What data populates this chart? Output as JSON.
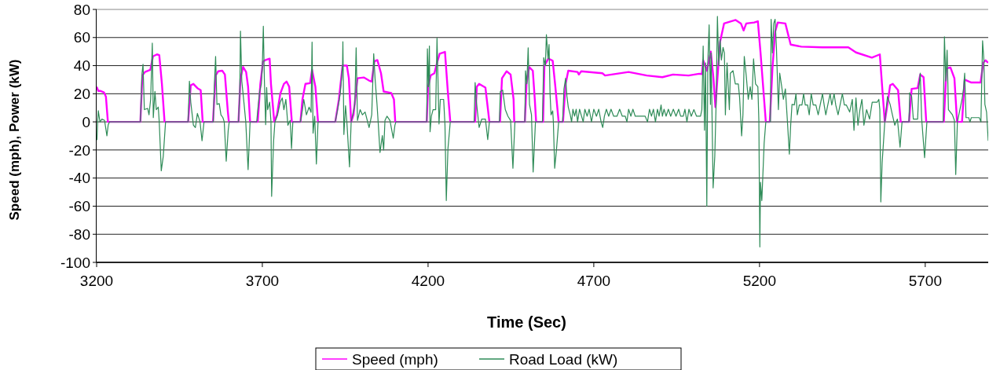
{
  "chart_data": {
    "type": "line",
    "xlabel": "Time (Sec)",
    "ylabel": "Speed (mph), Power (kW)",
    "xlim": [
      3200,
      5890
    ],
    "xticks": [
      3200,
      3700,
      4200,
      4700,
      5200,
      5700
    ],
    "ylim": [
      -100,
      80
    ],
    "yticks": [
      -100,
      -80,
      -60,
      -40,
      -20,
      0,
      20,
      40,
      60,
      80
    ],
    "grid": "y",
    "legend": "bottom",
    "marker": "none",
    "line_style": "solid",
    "series": [
      {
        "name": "Speed (mph)",
        "color": "#ff00ff",
        "x": [
          3200,
          3205,
          3212,
          3222,
          3228,
          3234,
          3332,
          3338,
          3346,
          3362,
          3370,
          3382,
          3389,
          3397,
          3405,
          3476,
          3484,
          3492,
          3504,
          3514,
          3520,
          3551,
          3559,
          3567,
          3579,
          3587,
          3596,
          3599,
          3628,
          3634,
          3642,
          3651,
          3657,
          3663,
          3686,
          3694,
          3702,
          3710,
          3722,
          3726,
          3736,
          3744,
          3754,
          3765,
          3773,
          3781,
          3789,
          3815,
          3821,
          3830,
          3844,
          3850,
          3860,
          3868,
          3920,
          3931,
          3942,
          3955,
          3961,
          3968,
          3975,
          3987,
          4006,
          4022,
          4030,
          4038,
          4047,
          4058,
          4066,
          4089,
          4097,
          4101,
          4196,
          4200,
          4208,
          4219,
          4227,
          4235,
          4251,
          4259,
          4267,
          4342,
          4347,
          4354,
          4373,
          4385,
          4417,
          4423,
          4437,
          4449,
          4458,
          4460,
          4492,
          4497,
          4505,
          4516,
          4522,
          4526,
          4547,
          4551,
          4563,
          4576,
          4584,
          4594,
          4607,
          4615,
          4623,
          4651,
          4655,
          4662,
          4726,
          4734,
          4805,
          4860,
          4907,
          4939,
          4986,
          5018,
          5026,
          5030,
          5041,
          5053,
          5061,
          5067,
          5073,
          5081,
          5093,
          5128,
          5144,
          5152,
          5160,
          5184,
          5195,
          5203,
          5215,
          5219,
          5231,
          5239,
          5247,
          5255,
          5278,
          5294,
          5326,
          5389,
          5468,
          5491,
          5539,
          5563,
          5570,
          5578,
          5586,
          5594,
          5602,
          5618,
          5626,
          5651,
          5659,
          5677,
          5685,
          5695,
          5703,
          5756,
          5764,
          5776,
          5788,
          5796,
          5811,
          5819,
          5839,
          5867,
          5875,
          5882,
          5890
        ],
        "values": [
          25,
          22,
          22,
          21,
          18,
          0,
          0,
          33,
          35.5,
          37,
          46.6,
          48,
          47.5,
          27,
          0,
          0,
          26,
          27,
          24,
          22.5,
          0,
          0,
          33,
          36,
          36.4,
          33.7,
          7,
          0,
          0,
          31,
          39,
          35.5,
          25,
          0,
          0,
          27,
          43,
          44,
          45,
          27,
          0,
          5,
          20,
          27,
          28.7,
          25,
          0,
          0,
          16,
          27,
          27.5,
          37,
          25,
          0,
          0,
          16,
          40,
          40,
          31,
          0,
          5,
          31,
          31.6,
          29.4,
          28.7,
          43,
          44,
          34.6,
          21.6,
          20.5,
          16,
          0,
          0,
          25,
          33,
          34.6,
          42,
          48.5,
          49.8,
          23.5,
          0,
          0,
          25,
          27,
          24.4,
          0,
          0,
          31,
          36,
          33.7,
          16,
          0,
          0,
          27,
          39,
          36.4,
          16,
          0,
          0,
          40,
          45,
          43.5,
          25,
          0,
          0,
          27,
          36.4,
          35.5,
          33.7,
          36,
          34.6,
          33,
          35.5,
          33,
          31.8,
          33.7,
          33,
          34.2,
          34,
          43.8,
          36.4,
          50,
          31,
          10.5,
          31,
          57,
          70,
          72.5,
          70,
          65,
          70,
          70.7,
          71.6,
          49.4,
          12.4,
          0,
          0,
          38,
          64,
          70.7,
          70,
          55,
          53.5,
          53,
          53,
          49.4,
          45.7,
          48,
          25,
          0,
          12.4,
          26,
          27,
          22.6,
          0,
          0,
          23.5,
          24,
          33.7,
          31.8,
          0,
          0,
          38,
          38.7,
          31,
          0,
          0,
          30,
          28,
          28,
          42,
          43.8,
          42
        ]
      },
      {
        "name": "Road Load (kW)",
        "color": "#2e8b57",
        "x": [
          3201,
          3203,
          3205,
          3210,
          3216,
          3224,
          3231,
          3235,
          3239,
          3332,
          3337,
          3340,
          3344,
          3354,
          3358,
          3363,
          3368,
          3371,
          3376,
          3380,
          3386,
          3389,
          3395,
          3401,
          3408,
          3476,
          3480,
          3484,
          3492,
          3498,
          3504,
          3512,
          3518,
          3524,
          3552,
          3555,
          3559,
          3563,
          3570,
          3575,
          3581,
          3585,
          3591,
          3597,
          3600,
          3628,
          3632,
          3634,
          3638,
          3645,
          3650,
          3657,
          3663,
          3683,
          3686,
          3692,
          3697,
          3700,
          3703,
          3706,
          3710,
          3713,
          3716,
          3722,
          3726,
          3728,
          3734,
          3738,
          3746,
          3754,
          3760,
          3765,
          3771,
          3777,
          3784,
          3788,
          3792,
          3815,
          3821,
          3825,
          3833,
          3841,
          3847,
          3850,
          3853,
          3858,
          3863,
          3868,
          3920,
          3927,
          3935,
          3942,
          3943,
          3946,
          3951,
          3955,
          3963,
          3968,
          3979,
          3983,
          3987,
          3995,
          4002,
          4010,
          4022,
          4030,
          4036,
          4040,
          4046,
          4050,
          4055,
          4062,
          4066,
          4070,
          4076,
          4085,
          4095,
          4100,
          4103,
          4196,
          4198,
          4201,
          4204,
          4206,
          4210,
          4215,
          4223,
          4227,
          4233,
          4237,
          4247,
          4251,
          4255,
          4260,
          4267,
          4339,
          4342,
          4346,
          4354,
          4362,
          4373,
          4380,
          4385,
          4415,
          4418,
          4425,
          4433,
          4441,
          4449,
          4456,
          4462,
          4492,
          4494,
          4498,
          4502,
          4506,
          4512,
          4517,
          4524,
          4545,
          4549,
          4554,
          4557,
          4562,
          4565,
          4568,
          4571,
          4576,
          4578,
          4582,
          4587,
          4594,
          4606,
          4610,
          4615,
          4619,
          4623,
          4629,
          4633,
          4637,
          4642,
          4647,
          4651,
          4657,
          4663,
          4668,
          4673,
          4680,
          4686,
          4693,
          4700,
          4708,
          4715,
          4722,
          4727,
          4732,
          4738,
          4745,
          4752,
          4760,
          4770,
          4778,
          4786,
          4795,
          4800,
          4805,
          4812,
          4818,
          4825,
          4835,
          4845,
          4855,
          4862,
          4868,
          4874,
          4880,
          4886,
          4892,
          4897,
          4903,
          4907,
          4912,
          4918,
          4925,
          4932,
          4940,
          4948,
          4956,
          4962,
          4970,
          4975,
          4981,
          4987,
          4994,
          5002,
          5010,
          5022,
          5026,
          5030,
          5034,
          5037,
          5041,
          5044,
          5048,
          5052,
          5054,
          5060,
          5065,
          5069,
          5073,
          5077,
          5081,
          5085,
          5090,
          5094,
          5097,
          5102,
          5109,
          5112,
          5120,
          5127,
          5136,
          5140,
          5146,
          5150,
          5154,
          5160,
          5166,
          5172,
          5177,
          5182,
          5188,
          5195,
          5198,
          5201,
          5203,
          5207,
          5214,
          5219,
          5233,
          5235,
          5239,
          5243,
          5247,
          5251,
          5257,
          5261,
          5267,
          5272,
          5278,
          5284,
          5290,
          5294,
          5298,
          5305,
          5310,
          5314,
          5320,
          5328,
          5333,
          5338,
          5345,
          5350,
          5356,
          5362,
          5370,
          5377,
          5383,
          5390,
          5395,
          5400,
          5406,
          5413,
          5418,
          5425,
          5430,
          5437,
          5443,
          5450,
          5456,
          5462,
          5472,
          5480,
          5485,
          5491,
          5497,
          5503,
          5509,
          5515,
          5523,
          5532,
          5540,
          5555,
          5560,
          5563,
          5566,
          5570,
          5578,
          5586,
          5594,
          5600,
          5608,
          5616,
          5624,
          5630,
          5651,
          5653,
          5659,
          5664,
          5677,
          5681,
          5685,
          5689,
          5698,
          5705,
          5754,
          5758,
          5762,
          5766,
          5770,
          5782,
          5788,
          5792,
          5797,
          5811,
          5815,
          5819,
          5823,
          5831,
          5835,
          5839,
          5863,
          5868,
          5873,
          5877,
          5880,
          5885,
          5890
        ],
        "values": [
          -13,
          0,
          8,
          0,
          2,
          1,
          -10,
          -2,
          0,
          0,
          34.6,
          41,
          8.7,
          9.6,
          5,
          16,
          56,
          3,
          21.6,
          8.7,
          10.5,
          -0.5,
          -34.8,
          -24.6,
          0,
          0,
          29,
          14,
          -2.4,
          -4,
          6,
          0,
          -13.5,
          0,
          0,
          25,
          46.6,
          12.4,
          13,
          5,
          3,
          0,
          -28,
          -6,
          0,
          0,
          21.6,
          64.6,
          29,
          12.4,
          0,
          -34,
          0,
          0,
          8,
          21.6,
          27,
          40,
          68,
          31,
          -2,
          24.4,
          8.7,
          14,
          0,
          -53,
          -13.5,
          0,
          5,
          14,
          17,
          8.7,
          16,
          -2.4,
          1,
          -19,
          0,
          0,
          8.7,
          16,
          5,
          10.5,
          6.8,
          56.8,
          -8,
          4,
          -30,
          0,
          0,
          8.7,
          20,
          40,
          57,
          -9,
          11.5,
          0,
          -32,
          0,
          12.4,
          52.7,
          1,
          8.7,
          5,
          7,
          -4,
          5,
          48.5,
          31,
          12.4,
          -2.4,
          -21.8,
          -9.8,
          -20,
          1,
          4,
          1,
          -11.6,
          -2.4,
          0,
          0,
          52,
          25,
          54,
          -7,
          4,
          8.7,
          8.7,
          59.6,
          -1.5,
          16,
          16,
          -2.4,
          -56,
          -19,
          0,
          0,
          28,
          14,
          -4,
          2,
          2,
          -12.6,
          0,
          0,
          21.6,
          22.6,
          8.7,
          4,
          1,
          -33,
          0,
          0,
          36.4,
          27,
          52.7,
          12.4,
          5,
          -35.7,
          0,
          0,
          45.7,
          40,
          62,
          45,
          55,
          20,
          5,
          7.8,
          0,
          -33,
          -21,
          0,
          0,
          23.5,
          31,
          18,
          10.5,
          5,
          0,
          9,
          4,
          9,
          0,
          9,
          4,
          0,
          9,
          4,
          9,
          0,
          9,
          4,
          9,
          0,
          -4,
          4,
          9,
          4,
          9,
          4,
          4,
          9,
          4,
          4,
          0,
          9,
          4,
          9,
          4,
          4,
          4,
          4,
          0,
          9,
          4,
          9,
          0,
          9,
          4,
          12,
          4,
          9,
          4,
          9,
          4,
          9,
          4,
          9,
          4,
          4,
          9,
          0,
          9,
          4,
          8.7,
          4,
          4,
          8.7,
          54,
          -6,
          42,
          -60,
          42,
          69,
          12.4,
          49,
          -47,
          -24.6,
          12.4,
          75,
          40,
          58.6,
          44,
          53,
          49,
          5,
          42,
          8.7,
          34.6,
          36.4,
          27,
          27,
          17,
          -10,
          5,
          46.6,
          32.7,
          16,
          25,
          16,
          44.8,
          27,
          25,
          1,
          -89,
          -43,
          -56,
          -15,
          0,
          0,
          73,
          49,
          70,
          73,
          53,
          8.7,
          34.6,
          25,
          16,
          23.5,
          1,
          -23,
          -2.4,
          12.4,
          12,
          20,
          5,
          12,
          12,
          20,
          12,
          12,
          5,
          20,
          12,
          12,
          5,
          12,
          20,
          12,
          5,
          12,
          20,
          12,
          20,
          12,
          5,
          12,
          20,
          12,
          12,
          7,
          16,
          -6,
          17,
          -2.4,
          8.7,
          16,
          -2.4,
          8.7,
          2,
          14,
          14,
          16,
          8.7,
          -57,
          -29,
          0,
          18,
          12.4,
          6,
          -2.4,
          2,
          -18,
          0,
          0,
          20.7,
          18,
          2,
          2,
          25,
          34.6,
          3,
          -25.5,
          0,
          0,
          60.5,
          29,
          51,
          8.7,
          5,
          1,
          -37.5,
          0,
          16,
          22.6,
          34.6,
          3,
          3,
          0,
          3,
          3,
          0,
          57.7,
          43.8,
          12.4,
          7,
          -13.5
        ]
      }
    ]
  }
}
